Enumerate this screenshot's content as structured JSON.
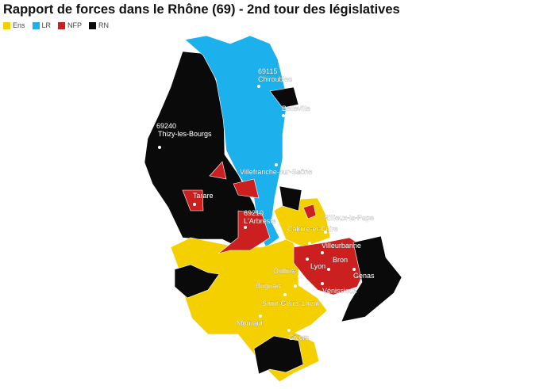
{
  "title": "Rapport de forces dans le Rhône (69) - 2nd tour des législatives",
  "legend": [
    {
      "label": "Ens",
      "color": "#f5d000"
    },
    {
      "label": "LR",
      "color": "#1cb1ec"
    },
    {
      "label": "NFP",
      "color": "#cc2020"
    },
    {
      "label": "RN",
      "color": "#0a0a0a"
    }
  ],
  "places": [
    {
      "code": "69115",
      "name": "Chiroubles"
    },
    {
      "name": "Belleville"
    },
    {
      "code": "69240",
      "name": "Thizy-les-Bourgs"
    },
    {
      "name": "Villefranche-sur-Saône"
    },
    {
      "name": "Tarare"
    },
    {
      "code": "69210",
      "name": "L'Arbresle"
    },
    {
      "name": "Rillieux-la-Pape"
    },
    {
      "name": "Caluire-et-Cuire"
    },
    {
      "name": "Villeurbanne"
    },
    {
      "name": "Lyon"
    },
    {
      "name": "Bron"
    },
    {
      "name": "Oullins"
    },
    {
      "name": "Genas"
    },
    {
      "name": "Brignais"
    },
    {
      "name": "Saint-Genis-Laval"
    },
    {
      "name": "Vénissieux"
    },
    {
      "name": "Mornant"
    },
    {
      "name": "Givors"
    }
  ]
}
